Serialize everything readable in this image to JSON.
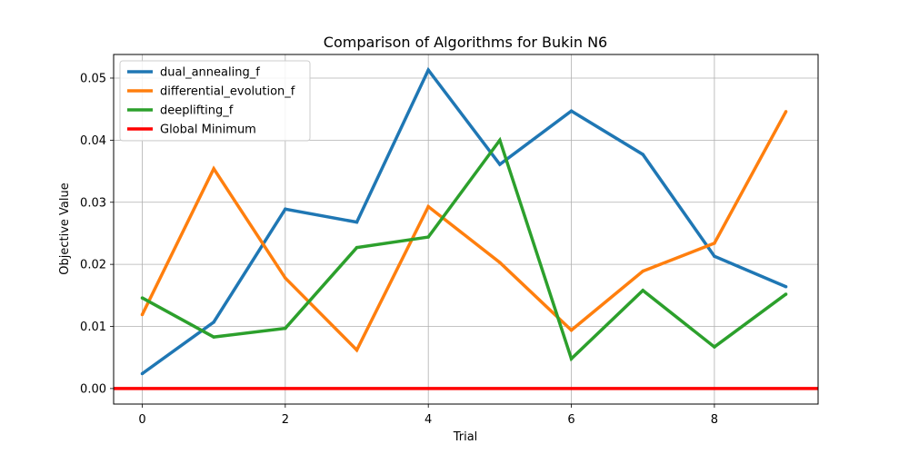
{
  "chart_data": {
    "type": "line",
    "title": "Comparison of Algorithms for Bukin N6",
    "xlabel": "Trial",
    "ylabel": "Objective Value",
    "xlim": [
      -0.4,
      9.45
    ],
    "ylim": [
      -0.0025,
      0.0538
    ],
    "xticks": [
      0,
      2,
      4,
      6,
      8
    ],
    "xtick_labels": [
      "0",
      "2",
      "4",
      "6",
      "8"
    ],
    "yticks": [
      0.0,
      0.01,
      0.02,
      0.03,
      0.04,
      0.05
    ],
    "ytick_labels": [
      "0.00",
      "0.01",
      "0.02",
      "0.03",
      "0.04",
      "0.05"
    ],
    "grid": true,
    "legend_position": "top-left",
    "x": [
      0,
      1,
      2,
      3,
      4,
      5,
      6,
      7,
      8,
      9
    ],
    "series": [
      {
        "name": "dual_annealing_f",
        "color": "#1f77b4",
        "values": [
          0.0024,
          0.0107,
          0.0289,
          0.0268,
          0.0513,
          0.0361,
          0.0447,
          0.0377,
          0.0213,
          0.0164
        ]
      },
      {
        "name": "differential_evolution_f",
        "color": "#ff7f0e",
        "values": [
          0.0119,
          0.0354,
          0.0178,
          0.0062,
          0.0293,
          0.0203,
          0.0094,
          0.0189,
          0.0234,
          0.0446
        ]
      },
      {
        "name": "deeplifting_f",
        "color": "#2ca02c",
        "values": [
          0.0146,
          0.0083,
          0.0097,
          0.0227,
          0.0244,
          0.04,
          0.0048,
          0.0158,
          0.0067,
          0.0152
        ]
      }
    ],
    "reference_line": {
      "name": "Global Minimum",
      "y": 0.0,
      "color": "#ff0000"
    }
  }
}
